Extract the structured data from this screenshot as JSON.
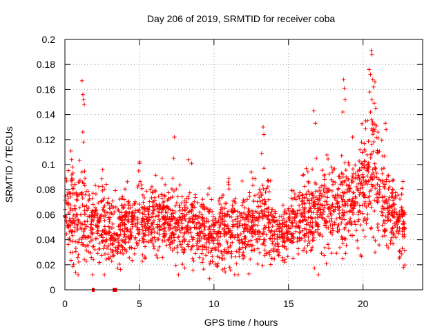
{
  "chart_data": {
    "type": "scatter",
    "title": "Day 206 of 2019, SRMTID for receiver coba",
    "xlabel": "GPS time / hours",
    "ylabel": "SRMTID / TECUs",
    "xlim": [
      0,
      24
    ],
    "ylim": [
      0,
      0.2
    ],
    "xticks": [
      0,
      5,
      10,
      15,
      20
    ],
    "xtick_labels": [
      "0",
      "5",
      "10",
      "15",
      "20"
    ],
    "yticks": [
      0,
      0.02,
      0.04,
      0.06,
      0.08,
      0.1,
      0.12,
      0.14,
      0.16,
      0.18,
      0.2
    ],
    "ytick_labels": [
      "0",
      "0.02",
      "0.04",
      "0.06",
      "0.08",
      "0.1",
      "0.12",
      "0.14",
      "0.16",
      "0.18",
      "0.2"
    ],
    "grid": true,
    "marker": "+",
    "color": "#ff0000",
    "zero_points": [
      [
        1.9,
        0
      ],
      [
        3.3,
        0
      ],
      [
        3.4,
        0
      ]
    ],
    "highlight_points": [
      [
        1.15,
        0.167
      ],
      [
        1.2,
        0.156
      ],
      [
        1.25,
        0.152
      ],
      [
        1.3,
        0.148
      ],
      [
        1.2,
        0.126
      ],
      [
        1.25,
        0.118
      ],
      [
        0.4,
        0.111
      ],
      [
        0.45,
        0.104
      ],
      [
        0.5,
        0.098
      ],
      [
        7.35,
        0.122
      ],
      [
        7.3,
        0.105
      ],
      [
        13.3,
        0.13
      ],
      [
        13.35,
        0.124
      ],
      [
        13.2,
        0.109
      ],
      [
        16.7,
        0.143
      ],
      [
        16.8,
        0.133
      ],
      [
        18.7,
        0.168
      ],
      [
        18.75,
        0.161
      ],
      [
        18.8,
        0.152
      ],
      [
        18.65,
        0.142
      ],
      [
        20.4,
        0.176
      ],
      [
        20.55,
        0.191
      ],
      [
        20.6,
        0.188
      ],
      [
        20.5,
        0.172
      ],
      [
        20.65,
        0.168
      ],
      [
        20.7,
        0.162
      ],
      [
        20.8,
        0.166
      ],
      [
        20.45,
        0.158
      ],
      [
        20.6,
        0.152
      ],
      [
        20.75,
        0.149
      ],
      [
        20.85,
        0.145
      ],
      [
        20.5,
        0.142
      ],
      [
        20.3,
        0.135
      ],
      [
        20.9,
        0.131
      ],
      [
        21.0,
        0.126
      ],
      [
        21.5,
        0.133
      ],
      [
        21.55,
        0.128
      ],
      [
        19.3,
        0.122
      ],
      [
        19.9,
        0.118
      ],
      [
        20.1,
        0.112
      ],
      [
        5.0,
        0.101
      ],
      [
        4.95,
        0.095
      ],
      [
        8.5,
        0.101
      ],
      [
        12.5,
        0.094
      ],
      [
        18.65,
        0.025
      ],
      [
        9.7,
        0.009
      ]
    ],
    "point_count": 2400,
    "profile": [
      [
        0.0,
        0.055,
        0.014
      ],
      [
        0.4,
        0.06,
        0.02
      ],
      [
        1.0,
        0.058,
        0.022
      ],
      [
        1.5,
        0.052,
        0.015
      ],
      [
        2.0,
        0.05,
        0.014
      ],
      [
        2.5,
        0.056,
        0.018
      ],
      [
        3.0,
        0.048,
        0.015
      ],
      [
        3.5,
        0.042,
        0.012
      ],
      [
        4.0,
        0.05,
        0.014
      ],
      [
        5.0,
        0.055,
        0.015
      ],
      [
        6.0,
        0.054,
        0.013
      ],
      [
        7.0,
        0.055,
        0.014
      ],
      [
        8.0,
        0.052,
        0.014
      ],
      [
        9.0,
        0.048,
        0.014
      ],
      [
        10.0,
        0.046,
        0.014
      ],
      [
        11.0,
        0.048,
        0.014
      ],
      [
        12.0,
        0.05,
        0.014
      ],
      [
        13.0,
        0.052,
        0.015
      ],
      [
        13.5,
        0.058,
        0.017
      ],
      [
        14.0,
        0.046,
        0.012
      ],
      [
        14.5,
        0.044,
        0.012
      ],
      [
        15.0,
        0.046,
        0.012
      ],
      [
        16.0,
        0.058,
        0.015
      ],
      [
        17.0,
        0.064,
        0.016
      ],
      [
        18.0,
        0.066,
        0.016
      ],
      [
        19.0,
        0.07,
        0.018
      ],
      [
        20.0,
        0.078,
        0.02
      ],
      [
        20.7,
        0.092,
        0.026
      ],
      [
        21.5,
        0.068,
        0.018
      ],
      [
        22.0,
        0.06,
        0.015
      ],
      [
        22.7,
        0.05,
        0.014
      ]
    ],
    "x_end": 22.8,
    "seed": 206
  }
}
